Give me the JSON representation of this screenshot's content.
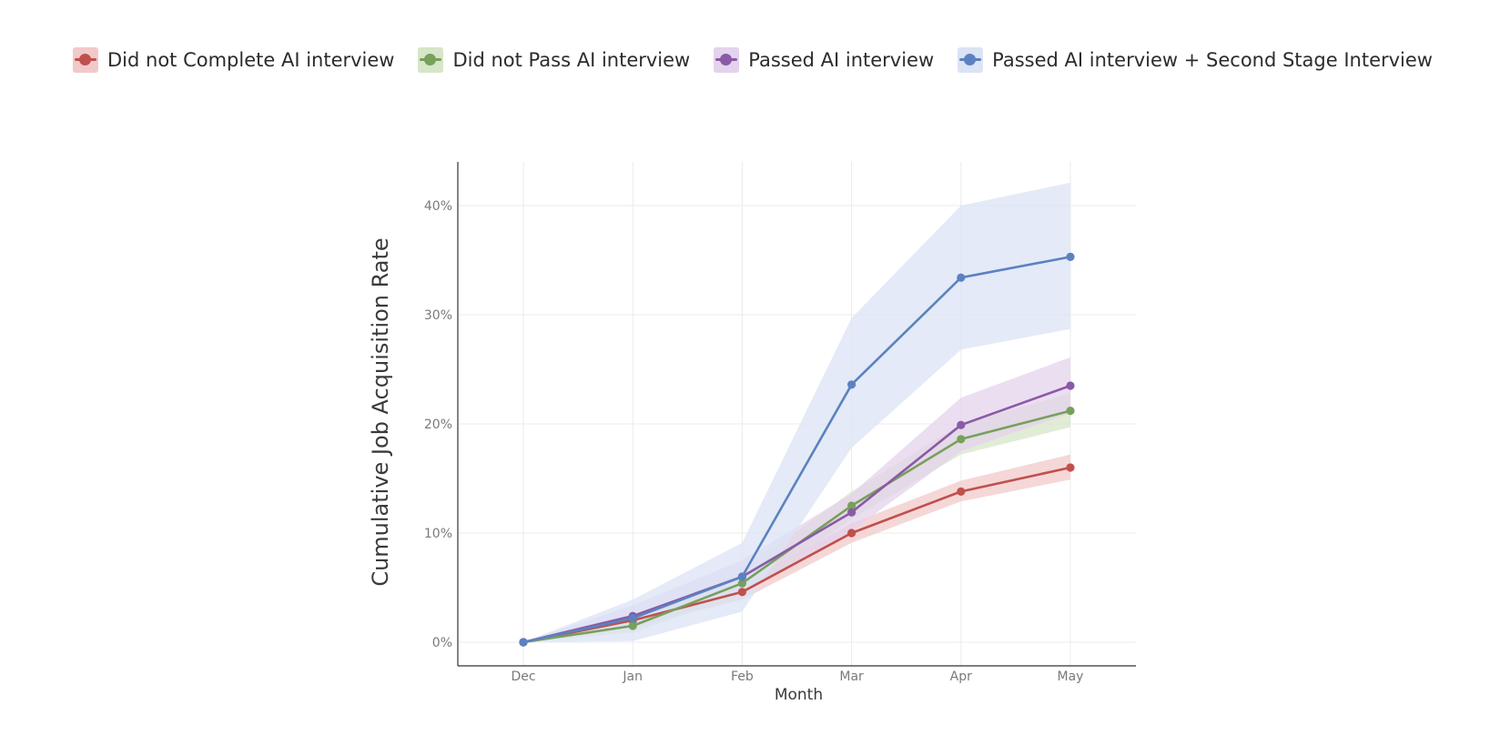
{
  "chart_data": {
    "type": "line",
    "title": "",
    "xlabel": "Month",
    "ylabel": "Cumulative Job Acquisition Rate",
    "categories": [
      "Dec",
      "Jan",
      "Feb",
      "Mar",
      "Apr",
      "May"
    ],
    "y_ticks": [
      0,
      10,
      20,
      30,
      40
    ],
    "y_tick_labels": [
      "0%",
      "10%",
      "20%",
      "30%",
      "40%"
    ],
    "ylim": [
      -2,
      44
    ],
    "grid": true,
    "legend_position": "top",
    "series": [
      {
        "name": "Did not Complete AI interview",
        "color": "#c0504d",
        "band_color": "#f2c9c9",
        "values": [
          0,
          2.0,
          4.6,
          10.0,
          13.8,
          16.0
        ],
        "lower": [
          0,
          1.4,
          3.9,
          9.1,
          12.9,
          14.9
        ],
        "upper": [
          0,
          2.6,
          5.3,
          10.9,
          14.8,
          17.2
        ]
      },
      {
        "name": "Did not Pass AI interview",
        "color": "#77a05a",
        "band_color": "#d7e5c8",
        "values": [
          0,
          1.5,
          5.4,
          12.5,
          18.6,
          21.2
        ],
        "lower": [
          0,
          0.9,
          4.4,
          11.3,
          17.2,
          19.7
        ],
        "upper": [
          0,
          2.2,
          6.5,
          13.8,
          20.0,
          22.8
        ]
      },
      {
        "name": "Passed AI interview",
        "color": "#8a5aa6",
        "band_color": "#e4d3ec",
        "values": [
          0,
          2.4,
          6.0,
          11.9,
          19.9,
          23.5
        ],
        "lower": [
          0,
          1.4,
          4.6,
          10.2,
          17.5,
          21.0
        ],
        "upper": [
          0,
          3.4,
          7.5,
          13.6,
          22.4,
          26.1
        ]
      },
      {
        "name": "Passed AI interview + Second Stage Interview",
        "color": "#5b82c0",
        "band_color": "#dbe3f4",
        "values": [
          0,
          2.2,
          6.0,
          23.6,
          33.4,
          35.3
        ],
        "lower": [
          0,
          0.1,
          2.8,
          17.8,
          26.8,
          28.7
        ],
        "upper": [
          0,
          3.9,
          9.1,
          29.7,
          40.0,
          42.1
        ]
      }
    ]
  }
}
